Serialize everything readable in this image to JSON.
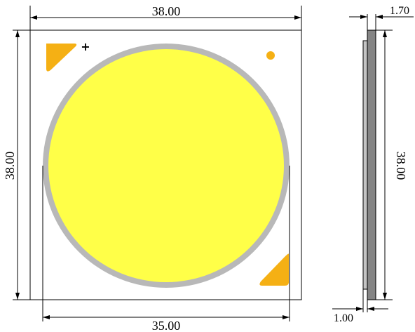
{
  "dimensions": {
    "top_width": "38.00",
    "left_height": "38.00",
    "bottom_width": "35.00",
    "side_top": "1.70",
    "side_height": "38.00",
    "side_bottom": "1.00"
  },
  "markings": {
    "polarity": "+"
  },
  "colors": {
    "emitter": "#ffff48",
    "emitter_ring": "#b8b8b8",
    "pad": "#f5b014",
    "substrate": "#ffffff",
    "side_dark": "#858585",
    "side_light": "#c4c4c4"
  }
}
